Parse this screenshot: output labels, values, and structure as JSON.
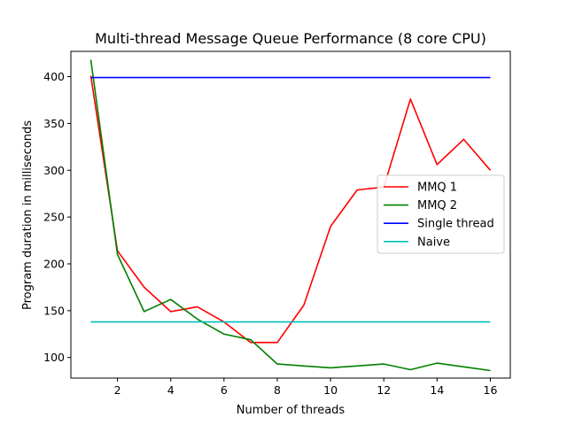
{
  "chart_data": {
    "type": "line",
    "title": "Multi-thread Message Queue Performance (8 core CPU)",
    "xlabel": "Number of threads",
    "ylabel": "Program duration in milliseconds",
    "xlim": [
      0.25,
      16.75
    ],
    "ylim": [
      78,
      427
    ],
    "xticks": [
      2,
      4,
      6,
      8,
      10,
      12,
      14,
      16
    ],
    "yticks": [
      100,
      150,
      200,
      250,
      300,
      350,
      400
    ],
    "grid": false,
    "legend_position": "center-right",
    "x": [
      1,
      2,
      3,
      4,
      5,
      6,
      7,
      8,
      9,
      10,
      11,
      12,
      13,
      14,
      15,
      16
    ],
    "series": [
      {
        "name": "MMQ 1",
        "color": "#ff0000",
        "values": [
          401,
          214,
          175,
          149,
          154,
          138,
          116,
          116,
          156,
          240,
          279,
          282,
          376,
          306,
          333,
          300
        ]
      },
      {
        "name": "MMQ 2",
        "color": "#008000",
        "values": [
          418,
          210,
          149,
          162,
          141,
          125,
          119,
          93,
          91,
          89,
          91,
          93,
          87,
          94,
          90,
          86
        ]
      },
      {
        "name": "Single thread",
        "color": "#0000ff",
        "values": [
          399,
          399,
          399,
          399,
          399,
          399,
          399,
          399,
          399,
          399,
          399,
          399,
          399,
          399,
          399,
          399
        ]
      },
      {
        "name": "Naive",
        "color": "#00bfbf",
        "values": [
          138,
          138,
          138,
          138,
          138,
          138,
          138,
          138,
          138,
          138,
          138,
          138,
          138,
          138,
          138,
          138
        ]
      }
    ]
  }
}
